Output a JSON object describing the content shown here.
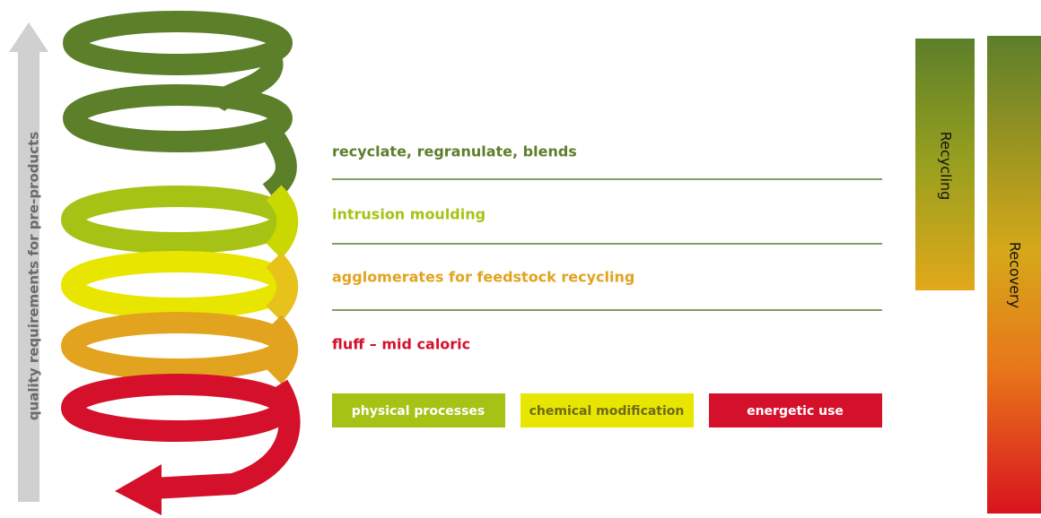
{
  "axis_label": "quality requirements for pre-products",
  "levels": [
    {
      "label": "recyclate, regranulate, blends",
      "color": "#5c7f2a"
    },
    {
      "label": "intrusion moulding",
      "color": "#a6c214"
    },
    {
      "label": "agglomerates for feedstock recycling",
      "color": "#e2a31f"
    },
    {
      "label": "fluff – mid caloric",
      "color": "#d5102b"
    }
  ],
  "legend": [
    {
      "label": "physical processes",
      "color": "#a6c214",
      "text_color": "#ffffff"
    },
    {
      "label": "chemical modification",
      "color": "#e8e600",
      "text_color": "#6d6a1a"
    },
    {
      "label": "energetic use",
      "color": "#d5102b",
      "text_color": "#ffffff"
    }
  ],
  "bars": [
    {
      "label": "Recycling"
    },
    {
      "label": "Recovery"
    }
  ]
}
